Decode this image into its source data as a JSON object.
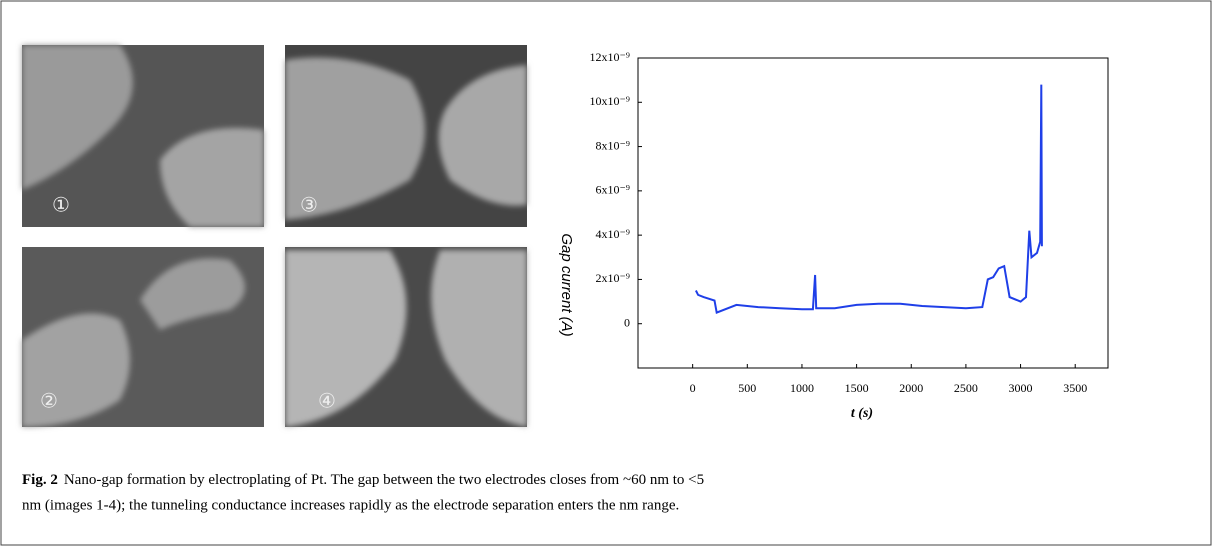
{
  "images": [
    {
      "label": "①"
    },
    {
      "label": "③"
    },
    {
      "label": "②"
    },
    {
      "label": "④"
    }
  ],
  "chart_data": {
    "type": "line",
    "xlabel": "t (s)",
    "ylabel": "Gap current (A)",
    "x": [
      30,
      50,
      100,
      200,
      220,
      400,
      600,
      800,
      1000,
      1100,
      1120,
      1130,
      1300,
      1500,
      1700,
      1900,
      2100,
      2300,
      2500,
      2650,
      2700,
      2750,
      2800,
      2850,
      2900,
      3000,
      3050,
      3080,
      3100,
      3150,
      3180,
      3190,
      3195
    ],
    "values": [
      1.5e-09,
      1.3e-09,
      1.2e-09,
      1.05e-09,
      5e-10,
      8.5e-10,
      7.5e-10,
      7e-10,
      6.5e-10,
      6.5e-10,
      2.2e-09,
      7e-10,
      7e-10,
      8.5e-10,
      9e-10,
      9e-10,
      8e-10,
      7.5e-10,
      7e-10,
      7.5e-10,
      2e-09,
      2.1e-09,
      2.5e-09,
      2.6e-09,
      1.2e-09,
      1e-09,
      1.2e-09,
      4.2e-09,
      3e-09,
      3.2e-09,
      3.7e-09,
      1.08e-08,
      3.5e-09
    ],
    "color": "#1f3fe8",
    "xlim": [
      -500,
      3800
    ],
    "ylim": [
      -2e-09,
      1.2e-08
    ],
    "xticks": [
      0,
      500,
      1000,
      1500,
      2000,
      2500,
      3000,
      3500
    ],
    "yticks": [
      0,
      {
        "value": 2e-09,
        "label": "2x10⁻⁹"
      },
      {
        "value": 4e-09,
        "label": "4x10⁻⁹"
      },
      {
        "value": 6e-09,
        "label": "6x10⁻⁹"
      },
      {
        "value": 8e-09,
        "label": "8x10⁻⁹"
      },
      {
        "value": 1e-08,
        "label": "10x10⁻⁹"
      },
      {
        "value": 1.2e-08,
        "label": "12x10⁻⁹"
      }
    ]
  },
  "caption": {
    "label": "Fig. 2",
    "line1": "Nano-gap formation by electroplating of Pt.  The gap between the two electrodes closes from ~60 nm to <5",
    "line2": "nm (images 1-4); the tunneling conductance increases rapidly as the electrode separation enters the nm range."
  }
}
